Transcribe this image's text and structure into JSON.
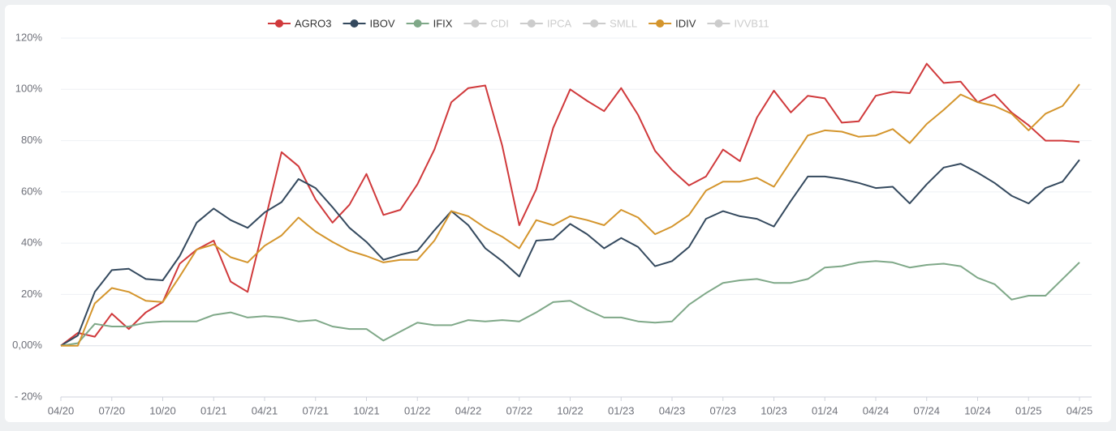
{
  "chart_data": {
    "type": "line",
    "categories": [
      "04/20",
      null,
      null,
      "07/20",
      null,
      null,
      "10/20",
      null,
      null,
      "01/21",
      null,
      null,
      "04/21",
      null,
      null,
      "07/21",
      null,
      null,
      "10/21",
      null,
      null,
      "01/22",
      null,
      null,
      "04/22",
      null,
      null,
      "07/22",
      null,
      null,
      "10/22",
      null,
      null,
      "01/23",
      null,
      null,
      "04/23",
      null,
      null,
      "07/23",
      null,
      null,
      "10/23",
      null,
      null,
      "01/24",
      null,
      null,
      "04/24",
      null,
      null,
      "07/24",
      null,
      null,
      "10/24",
      null,
      null,
      "01/25",
      null,
      null,
      "04/25"
    ],
    "series": [
      {
        "name": "AGRO3",
        "color": "#d0393b",
        "values": [
          0,
          5,
          3.5,
          12.5,
          6.5,
          13,
          17,
          32,
          37.5,
          41,
          25,
          21,
          48,
          75.5,
          70,
          57,
          48,
          55,
          67,
          51,
          53,
          63,
          76.5,
          95,
          100.5,
          101.5,
          78,
          47,
          61,
          85,
          100,
          95.5,
          91.5,
          100.5,
          90,
          76,
          68.5,
          62.5,
          66,
          76.5,
          72,
          89,
          99.5,
          91,
          97.5,
          96.5,
          87,
          87.5,
          97.5,
          99,
          98.5,
          110,
          102.5,
          103,
          95,
          98,
          91,
          86,
          80,
          80,
          79.5
        ]
      },
      {
        "name": "IBOV",
        "color": "#34495e",
        "values": [
          0,
          4,
          21,
          29.5,
          30,
          26,
          25.5,
          35,
          48,
          53.5,
          49,
          46,
          52,
          56,
          65,
          61.5,
          54,
          46,
          40.5,
          33.5,
          35.5,
          37,
          45,
          52.5,
          47,
          38,
          33,
          27,
          41,
          41.5,
          47.5,
          43.5,
          38,
          42,
          38.5,
          31,
          33,
          38.5,
          49.5,
          52.5,
          50.5,
          49.5,
          46.5,
          56.5,
          66,
          66,
          65,
          63.5,
          61.5,
          62,
          55.5,
          63,
          69.5,
          71,
          67.5,
          63.5,
          58.5,
          55.5,
          61.5,
          64,
          72.5
        ]
      },
      {
        "name": "IFIX",
        "color": "#7fa888",
        "values": [
          0,
          1,
          8.5,
          7.5,
          7.5,
          9,
          9.5,
          9.5,
          9.5,
          12,
          13,
          11,
          11.5,
          11,
          9.5,
          10,
          7.5,
          6.5,
          6.5,
          2,
          5.5,
          9,
          8,
          8,
          10,
          9.5,
          10,
          9.5,
          13,
          17,
          17.5,
          14,
          11,
          11,
          9.5,
          9,
          9.5,
          16,
          20.5,
          24.5,
          25.5,
          26,
          24.5,
          24.5,
          26,
          30.5,
          31,
          32.5,
          33,
          32.5,
          30.5,
          31.5,
          32,
          31,
          26.5,
          24,
          18,
          19.5,
          19.5,
          26,
          32.5
        ]
      },
      {
        "name": "IDIV",
        "color": "#d4952c",
        "values": [
          0,
          0,
          16.5,
          22.5,
          21,
          17.5,
          17,
          27,
          37.5,
          39.5,
          34.5,
          32.5,
          39,
          43,
          50,
          44.5,
          40.5,
          37,
          35,
          32.5,
          33.5,
          33.5,
          41,
          52.5,
          50.5,
          46,
          42.5,
          38,
          49,
          47,
          50.5,
          49,
          47,
          53,
          50,
          43.5,
          46.5,
          51,
          60.5,
          64,
          64,
          65.5,
          62,
          72,
          82,
          84,
          83.5,
          81.5,
          82,
          84.5,
          79,
          86.5,
          92,
          98,
          95,
          93.5,
          90.5,
          84,
          90.5,
          93.5,
          102
        ]
      }
    ],
    "legend_order": [
      "AGRO3",
      "IBOV",
      "IFIX",
      "CDI",
      "IPCA",
      "SMLL",
      "IDIV",
      "IVVB11"
    ],
    "inactive_series": [
      {
        "name": "CDI"
      },
      {
        "name": "IPCA"
      },
      {
        "name": "SMLL"
      },
      {
        "name": "IVVB11"
      }
    ],
    "inactive_color": "#cccccc",
    "ylim": [
      -20,
      120
    ],
    "yticks": [
      {
        "value": -20,
        "label": "- 20%"
      },
      {
        "value": 0,
        "label": "0,00%"
      },
      {
        "value": 20,
        "label": "20%"
      },
      {
        "value": 40,
        "label": "40%"
      },
      {
        "value": 60,
        "label": "60%"
      },
      {
        "value": 80,
        "label": "80%"
      },
      {
        "value": 100,
        "label": "100%"
      },
      {
        "value": 120,
        "label": "120%"
      }
    ],
    "grid": true,
    "legend": "top"
  }
}
